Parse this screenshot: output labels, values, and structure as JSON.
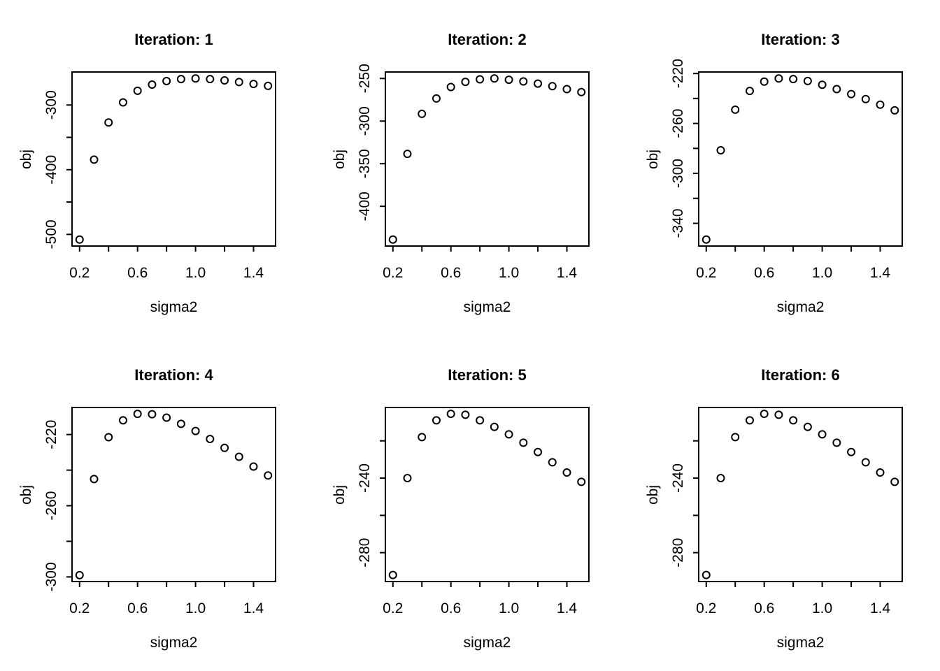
{
  "figure": {
    "background_color": "#ffffff",
    "foreground_color": "#000000",
    "layout": "2x3 grid of R base scatter plots"
  },
  "chart_data": [
    {
      "type": "scatter",
      "title": "Iteration: 1",
      "xlabel": "sigma2",
      "ylabel": "obj",
      "x": [
        0.2,
        0.3,
        0.4,
        0.5,
        0.6,
        0.7,
        0.8,
        0.9,
        1.0,
        1.1,
        1.2,
        1.3,
        1.4,
        1.5
      ],
      "y": [
        -508,
        -384.5,
        -327,
        -296,
        -278,
        -268.5,
        -263,
        -260,
        -259,
        -260,
        -262,
        -264.5,
        -267.5,
        -270.5
      ],
      "xlim": [
        0.148,
        1.552
      ],
      "ylim": [
        -518,
        -249
      ],
      "xtick_values": [
        0.2,
        0.4,
        0.6,
        0.8,
        1.0,
        1.2,
        1.4
      ],
      "xtick_labels": [
        "0.2",
        "",
        "0.6",
        "",
        "1.0",
        "",
        "1.4"
      ],
      "ytick_values": [
        -500,
        -450,
        -400,
        -350,
        -300
      ],
      "ytick_labels": [
        "-500",
        "",
        "-400",
        "",
        "-300"
      ],
      "grid": false,
      "legend": null,
      "marker": "open-circle"
    },
    {
      "type": "scatter",
      "title": "Iteration: 2",
      "xlabel": "sigma2",
      "ylabel": "obj",
      "x": [
        0.2,
        0.3,
        0.4,
        0.5,
        0.6,
        0.7,
        0.8,
        0.9,
        1.0,
        1.1,
        1.2,
        1.3,
        1.4,
        1.5
      ],
      "y": [
        -439,
        -338.5,
        -291.5,
        -273.5,
        -260,
        -254,
        -251,
        -250,
        -251.5,
        -253.5,
        -256,
        -259,
        -262.5,
        -266
      ],
      "xlim": [
        0.148,
        1.552
      ],
      "ylim": [
        -446.6,
        -242.4
      ],
      "xtick_values": [
        0.2,
        0.4,
        0.6,
        0.8,
        1.0,
        1.2,
        1.4
      ],
      "xtick_labels": [
        "0.2",
        "",
        "0.6",
        "",
        "1.0",
        "",
        "1.4"
      ],
      "ytick_values": [
        -400,
        -350,
        -300,
        -250
      ],
      "ytick_labels": [
        "-400",
        "-350",
        "-300",
        "-250"
      ],
      "grid": false,
      "legend": null,
      "marker": "open-circle"
    },
    {
      "type": "scatter",
      "title": "Iteration: 3",
      "xlabel": "sigma2",
      "ylabel": "obj",
      "x": [
        0.2,
        0.3,
        0.4,
        0.5,
        0.6,
        0.7,
        0.8,
        0.9,
        1.0,
        1.1,
        1.2,
        1.3,
        1.4,
        1.5
      ],
      "y": [
        -353,
        -281.5,
        -249,
        -234,
        -226.5,
        -224,
        -224.5,
        -226,
        -229,
        -232.5,
        -236.5,
        -240.5,
        -245,
        -249.5
      ],
      "xlim": [
        0.148,
        1.552
      ],
      "ylim": [
        -358.2,
        -218.8
      ],
      "xtick_values": [
        0.2,
        0.4,
        0.6,
        0.8,
        1.0,
        1.2,
        1.4
      ],
      "xtick_labels": [
        "0.2",
        "",
        "0.6",
        "",
        "1.0",
        "",
        "1.4"
      ],
      "ytick_values": [
        -340,
        -320,
        -300,
        -280,
        -260,
        -240,
        -220
      ],
      "ytick_labels": [
        "-340",
        "",
        "-300",
        "",
        "-260",
        "",
        "-220"
      ],
      "grid": false,
      "legend": null,
      "marker": "open-circle"
    },
    {
      "type": "scatter",
      "title": "Iteration: 4",
      "xlabel": "sigma2",
      "ylabel": "obj",
      "x": [
        0.2,
        0.3,
        0.4,
        0.5,
        0.6,
        0.7,
        0.8,
        0.9,
        1.0,
        1.1,
        1.2,
        1.3,
        1.4,
        1.5
      ],
      "y": [
        -299,
        -245,
        -221.5,
        -212,
        -208.4,
        -208.6,
        -210.5,
        -214,
        -218,
        -222.5,
        -227.5,
        -232.5,
        -238,
        -243
      ],
      "xlim": [
        0.148,
        1.552
      ],
      "ylim": [
        -302.6,
        -204.8
      ],
      "xtick_values": [
        0.2,
        0.4,
        0.6,
        0.8,
        1.0,
        1.2,
        1.4
      ],
      "xtick_labels": [
        "0.2",
        "",
        "0.6",
        "",
        "1.0",
        "",
        "1.4"
      ],
      "ytick_values": [
        -300,
        -280,
        -260,
        -240,
        -220
      ],
      "ytick_labels": [
        "-300",
        "",
        "-260",
        "",
        "-220"
      ],
      "grid": false,
      "legend": null,
      "marker": "open-circle"
    },
    {
      "type": "scatter",
      "title": "Iteration: 5",
      "xlabel": "sigma2",
      "ylabel": "obj",
      "x": [
        0.2,
        0.3,
        0.4,
        0.5,
        0.6,
        0.7,
        0.8,
        0.9,
        1.0,
        1.1,
        1.2,
        1.3,
        1.4,
        1.5
      ],
      "y": [
        -292,
        -240,
        -218,
        -209,
        -205.5,
        -206,
        -209,
        -212.5,
        -216.5,
        -221,
        -226,
        -231.5,
        -237,
        -242
      ],
      "xlim": [
        0.148,
        1.552
      ],
      "ylim": [
        -295.5,
        -202.1
      ],
      "xtick_values": [
        0.2,
        0.4,
        0.6,
        0.8,
        1.0,
        1.2,
        1.4
      ],
      "xtick_labels": [
        "0.2",
        "",
        "0.6",
        "",
        "1.0",
        "",
        "1.4"
      ],
      "ytick_values": [
        -280,
        -260,
        -240,
        -220
      ],
      "ytick_labels": [
        "-280",
        "",
        "-240",
        ""
      ],
      "grid": false,
      "legend": null,
      "marker": "open-circle"
    },
    {
      "type": "scatter",
      "title": "Iteration: 6",
      "xlabel": "sigma2",
      "ylabel": "obj",
      "x": [
        0.2,
        0.3,
        0.4,
        0.5,
        0.6,
        0.7,
        0.8,
        0.9,
        1.0,
        1.1,
        1.2,
        1.3,
        1.4,
        1.5
      ],
      "y": [
        -292,
        -240,
        -218,
        -209,
        -205.5,
        -206,
        -209,
        -212.5,
        -216.5,
        -221,
        -226,
        -231.5,
        -237,
        -242
      ],
      "xlim": [
        0.148,
        1.552
      ],
      "ylim": [
        -295.5,
        -202.1
      ],
      "xtick_values": [
        0.2,
        0.4,
        0.6,
        0.8,
        1.0,
        1.2,
        1.4
      ],
      "xtick_labels": [
        "0.2",
        "",
        "0.6",
        "",
        "1.0",
        "",
        "1.4"
      ],
      "ytick_values": [
        -280,
        -260,
        -240,
        -220
      ],
      "ytick_labels": [
        "-280",
        "",
        "-240",
        ""
      ],
      "grid": false,
      "legend": null,
      "marker": "open-circle"
    }
  ]
}
